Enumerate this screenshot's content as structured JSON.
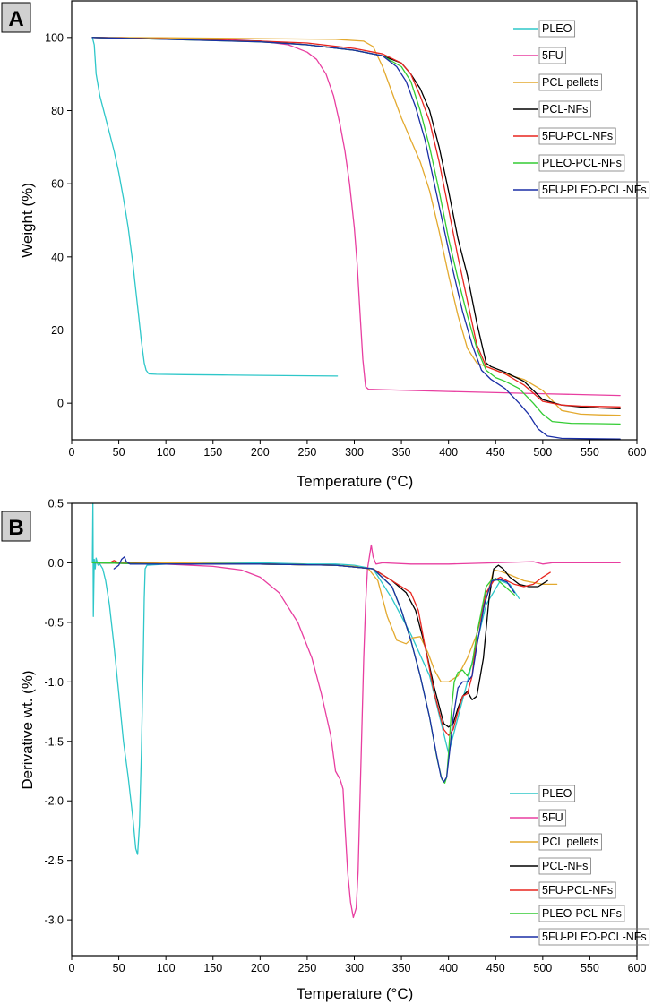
{
  "figure": {
    "panels": [
      {
        "id": "A",
        "letter": "A"
      },
      {
        "id": "B",
        "letter": "B"
      }
    ]
  },
  "legend_labels": [
    "PLEO",
    "5FU",
    "PCL pellets",
    "PCL-NFs",
    "5FU-PCL-NFs",
    "PLEO-PCL-NFs",
    "5FU-PLEO-PCL-NFs"
  ],
  "chart_data": [
    {
      "type": "line",
      "panel": "A",
      "title": "",
      "xlabel": "Temperature (°C)",
      "ylabel": "Weight (%)",
      "xlim": [
        0,
        600
      ],
      "ylim": [
        -10,
        110
      ],
      "xticks": [
        0,
        50,
        100,
        150,
        200,
        250,
        300,
        350,
        400,
        450,
        500,
        550,
        600
      ],
      "yticks": [
        0,
        20,
        40,
        60,
        80,
        100
      ],
      "grid": false,
      "legend": "top-right",
      "series": [
        {
          "name": "PLEO",
          "color": "#2ec7c9",
          "x": [
            22,
            24,
            26,
            30,
            35,
            40,
            45,
            50,
            55,
            60,
            65,
            68,
            71,
            74,
            77,
            79,
            82,
            90,
            120,
            160,
            200,
            240,
            282
          ],
          "y": [
            100,
            98,
            90,
            84,
            79,
            74,
            69,
            63,
            56,
            48,
            38,
            31,
            24,
            17,
            11,
            9,
            8,
            7.9,
            7.8,
            7.7,
            7.6,
            7.5,
            7.4
          ]
        },
        {
          "name": "5FU",
          "color": "#e83ea0",
          "x": [
            22,
            100,
            150,
            200,
            230,
            250,
            260,
            270,
            278,
            285,
            290,
            295,
            300,
            303,
            306,
            309,
            312,
            315,
            330,
            400,
            500,
            582
          ],
          "y": [
            100,
            99.8,
            99.6,
            99,
            98,
            96,
            94,
            90,
            84,
            76,
            69,
            60,
            48,
            38,
            25,
            12,
            4.5,
            3.8,
            3.7,
            3.2,
            2.6,
            2.1
          ]
        },
        {
          "name": "PCL pellets",
          "color": "#e3a92e",
          "x": [
            22,
            100,
            200,
            280,
            310,
            320,
            330,
            340,
            350,
            360,
            370,
            380,
            390,
            400,
            410,
            420,
            430,
            440,
            450,
            460,
            480,
            500,
            520,
            540,
            560,
            582
          ],
          "y": [
            100,
            99.9,
            99.7,
            99.5,
            99,
            97.5,
            92,
            85,
            78,
            72,
            66,
            58,
            47,
            35,
            24,
            15,
            11,
            10,
            9,
            8,
            6.5,
            3.5,
            -2,
            -3,
            -3.2,
            -3.3
          ]
        },
        {
          "name": "PCL-NFs",
          "color": "#000000",
          "x": [
            22,
            100,
            200,
            250,
            300,
            330,
            350,
            360,
            370,
            380,
            390,
            400,
            410,
            420,
            430,
            440,
            445,
            460,
            480,
            500,
            520,
            540,
            560,
            582
          ],
          "y": [
            100,
            99.6,
            99,
            98,
            96.5,
            95,
            93,
            90,
            86,
            80,
            70,
            58,
            45,
            35,
            22,
            11,
            10,
            8.5,
            6,
            1,
            -0.5,
            -1,
            -1.3,
            -1.5
          ]
        },
        {
          "name": "5FU-PCL-NFs",
          "color": "#e8251f",
          "x": [
            22,
            100,
            200,
            250,
            300,
            330,
            350,
            360,
            370,
            380,
            390,
            400,
            410,
            420,
            430,
            440,
            445,
            460,
            480,
            500,
            520,
            540,
            560,
            582
          ],
          "y": [
            100,
            99.6,
            99,
            98.5,
            97,
            95.5,
            93,
            90,
            84,
            77,
            66,
            53,
            40,
            28,
            16,
            10,
            9.5,
            8,
            5,
            0.5,
            -0.5,
            -0.8,
            -0.9,
            -1
          ]
        },
        {
          "name": "PLEO-PCL-NFs",
          "color": "#33cc33",
          "x": [
            22,
            100,
            200,
            250,
            300,
            330,
            350,
            360,
            370,
            380,
            390,
            400,
            410,
            420,
            430,
            440,
            450,
            460,
            475,
            490,
            500,
            510,
            530,
            560,
            582
          ],
          "y": [
            100,
            99.5,
            98.8,
            98,
            96.5,
            95,
            92,
            88,
            80,
            70,
            58,
            45,
            34,
            24,
            15,
            9,
            7,
            6,
            4,
            0,
            -3,
            -5,
            -5.5,
            -5.6,
            -5.7
          ]
        },
        {
          "name": "5FU-PLEO-PCL-NFs",
          "color": "#1a2ea6",
          "x": [
            22,
            100,
            200,
            250,
            300,
            330,
            345,
            355,
            365,
            375,
            385,
            395,
            405,
            415,
            425,
            435,
            445,
            460,
            475,
            485,
            495,
            505,
            520,
            550,
            582
          ],
          "y": [
            100,
            99.5,
            98.8,
            98,
            96.5,
            95,
            92,
            88,
            81,
            72,
            60,
            48,
            36,
            25,
            16,
            9,
            6.5,
            4,
            0,
            -3,
            -7,
            -9,
            -9.6,
            -9.7,
            -9.8
          ]
        }
      ]
    },
    {
      "type": "line",
      "panel": "B",
      "title": "",
      "xlabel": "Temperature (°C)",
      "ylabel": "Derivative wt. (%)",
      "xlim": [
        0,
        600
      ],
      "ylim": [
        -3.3,
        0.5
      ],
      "xticks": [
        0,
        50,
        100,
        150,
        200,
        250,
        300,
        350,
        400,
        450,
        500,
        550,
        600
      ],
      "yticks": [
        0.5,
        0.0,
        -0.5,
        -1.0,
        -1.5,
        -2.0,
        -2.5,
        -3.0
      ],
      "grid": false,
      "legend": "bottom-right",
      "series": [
        {
          "name": "PLEO",
          "color": "#2ec7c9",
          "x": [
            22,
            22.5,
            23,
            23.5,
            24,
            25,
            26,
            28,
            30,
            33,
            36,
            40,
            45,
            50,
            55,
            60,
            65,
            68,
            70,
            72,
            74,
            76,
            77,
            78,
            80,
            100,
            150,
            200,
            250,
            280,
            300,
            320,
            340,
            360,
            380,
            400,
            420,
            440,
            455,
            465,
            475
          ],
          "y": [
            0,
            0.5,
            -0.45,
            -0.2,
            0.03,
            -0.05,
            0.04,
            -0.02,
            -0.01,
            -0.05,
            -0.15,
            -0.35,
            -0.7,
            -1.1,
            -1.5,
            -1.8,
            -2.15,
            -2.4,
            -2.45,
            -2.2,
            -1.6,
            -0.8,
            -0.3,
            -0.05,
            -0.02,
            -0.01,
            0,
            0,
            -0.01,
            -0.01,
            -0.02,
            -0.05,
            -0.3,
            -0.6,
            -0.95,
            -1.6,
            -1.0,
            -0.35,
            -0.15,
            -0.18,
            -0.3
          ]
        },
        {
          "name": "5FU",
          "color": "#e83ea0",
          "x": [
            22,
            100,
            150,
            180,
            200,
            220,
            240,
            255,
            265,
            275,
            280,
            285,
            288,
            290,
            293,
            296,
            299,
            302,
            304,
            306,
            308,
            310,
            312,
            314,
            316,
            318,
            320,
            323,
            330,
            360,
            400,
            450,
            490,
            500,
            510,
            550,
            582
          ],
          "y": [
            0,
            -0.01,
            -0.03,
            -0.06,
            -0.12,
            -0.25,
            -0.5,
            -0.8,
            -1.1,
            -1.45,
            -1.75,
            -1.82,
            -1.9,
            -2.2,
            -2.6,
            -2.85,
            -2.98,
            -2.9,
            -2.6,
            -2.0,
            -1.4,
            -0.8,
            -0.35,
            -0.05,
            0.05,
            0.15,
            0.05,
            -0.01,
            0,
            -0.01,
            -0.01,
            0,
            0.01,
            -0.01,
            0,
            0,
            0
          ]
        },
        {
          "name": "PCL pellets",
          "color": "#e3a92e",
          "x": [
            22,
            100,
            200,
            280,
            300,
            315,
            325,
            335,
            345,
            355,
            362,
            370,
            378,
            385,
            392,
            400,
            410,
            420,
            430,
            440,
            448,
            455,
            465,
            480,
            500,
            515
          ],
          "y": [
            0,
            0,
            -0.01,
            -0.02,
            -0.03,
            -0.05,
            -0.15,
            -0.45,
            -0.65,
            -0.68,
            -0.63,
            -0.62,
            -0.75,
            -0.9,
            -1.0,
            -1.0,
            -0.95,
            -0.8,
            -0.6,
            -0.3,
            -0.06,
            -0.07,
            -0.1,
            -0.15,
            -0.18,
            -0.18
          ]
        },
        {
          "name": "PCL-NFs",
          "color": "#000000",
          "x": [
            22,
            100,
            200,
            280,
            320,
            340,
            355,
            365,
            375,
            385,
            395,
            400,
            405,
            410,
            415,
            420,
            425,
            430,
            437,
            443,
            448,
            453,
            458,
            465,
            475,
            485,
            495,
            505
          ],
          "y": [
            0,
            -0.01,
            -0.01,
            -0.02,
            -0.05,
            -0.15,
            -0.25,
            -0.4,
            -0.7,
            -1.05,
            -1.35,
            -1.38,
            -1.35,
            -1.22,
            -1.12,
            -1.08,
            -1.15,
            -1.12,
            -0.8,
            -0.3,
            -0.05,
            -0.02,
            -0.05,
            -0.12,
            -0.18,
            -0.2,
            -0.2,
            -0.15
          ]
        },
        {
          "name": "5FU-PCL-NFs",
          "color": "#e8251f",
          "x": [
            22,
            40,
            45,
            50,
            60,
            100,
            200,
            280,
            320,
            340,
            350,
            360,
            368,
            375,
            385,
            395,
            400,
            405,
            410,
            415,
            420,
            425,
            430,
            440,
            448,
            455,
            462,
            470,
            480,
            490,
            500,
            508
          ],
          "y": [
            0,
            0,
            0.02,
            0,
            0,
            -0.01,
            -0.01,
            -0.02,
            -0.05,
            -0.15,
            -0.2,
            -0.25,
            -0.4,
            -0.7,
            -1.1,
            -1.4,
            -1.45,
            -1.4,
            -1.25,
            -1.12,
            -1.1,
            -0.95,
            -0.6,
            -0.25,
            -0.15,
            -0.12,
            -0.15,
            -0.18,
            -0.2,
            -0.18,
            -0.12,
            -0.08
          ]
        },
        {
          "name": "PLEO-PCL-NFs",
          "color": "#33cc33",
          "x": [
            22,
            100,
            200,
            280,
            320,
            340,
            350,
            360,
            370,
            380,
            388,
            393,
            396,
            398,
            400,
            403,
            406,
            410,
            415,
            420,
            425,
            430,
            435,
            440,
            445,
            450,
            460,
            470
          ],
          "y": [
            0,
            -0.01,
            -0.01,
            -0.02,
            -0.05,
            -0.2,
            -0.4,
            -0.65,
            -0.95,
            -1.3,
            -1.65,
            -1.82,
            -1.85,
            -1.8,
            -1.6,
            -1.25,
            -1.0,
            -0.92,
            -0.9,
            -0.95,
            -0.85,
            -0.6,
            -0.4,
            -0.2,
            -0.15,
            -0.13,
            -0.2,
            -0.27
          ]
        },
        {
          "name": "5FU-PLEO-PCL-NFs",
          "color": "#1a2ea6",
          "x": [
            45,
            50,
            53,
            56,
            58,
            62,
            100,
            200,
            280,
            320,
            340,
            350,
            360,
            370,
            380,
            387,
            392,
            395,
            398,
            401,
            405,
            410,
            415,
            420,
            425,
            430,
            438,
            446,
            455,
            462,
            470
          ],
          "y": [
            -0.05,
            -0.02,
            0.03,
            0.05,
            0.01,
            -0.01,
            -0.01,
            -0.01,
            -0.02,
            -0.05,
            -0.2,
            -0.4,
            -0.65,
            -0.95,
            -1.3,
            -1.6,
            -1.8,
            -1.84,
            -1.8,
            -1.6,
            -1.3,
            -1.05,
            -1.0,
            -1.0,
            -0.95,
            -0.7,
            -0.35,
            -0.15,
            -0.14,
            -0.16,
            -0.25
          ]
        }
      ]
    }
  ]
}
